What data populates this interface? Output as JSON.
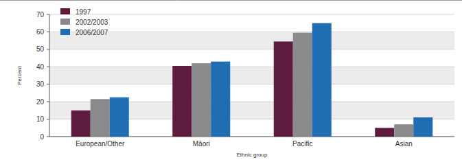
{
  "chart_data": {
    "type": "bar",
    "x_label": "Ethnic group",
    "y_label": "Percent",
    "categories": [
      "European/Other",
      "Māori",
      "Pacific",
      "Asian"
    ],
    "series": [
      {
        "name": "1997",
        "color": "#5e1b40",
        "values": [
          15,
          40.5,
          54.5,
          5
        ]
      },
      {
        "name": "2002/2003",
        "color": "#8a8a8c",
        "values": [
          21.5,
          42,
          59.5,
          7
        ]
      },
      {
        "name": "2006/2007",
        "color": "#1f6db3",
        "values": [
          22.5,
          43,
          65,
          11
        ]
      }
    ],
    "ylim": [
      0,
      70
    ],
    "yticks": [
      0,
      10,
      20,
      30,
      40,
      50,
      60,
      70
    ],
    "grid": true,
    "legend": "top-left"
  }
}
